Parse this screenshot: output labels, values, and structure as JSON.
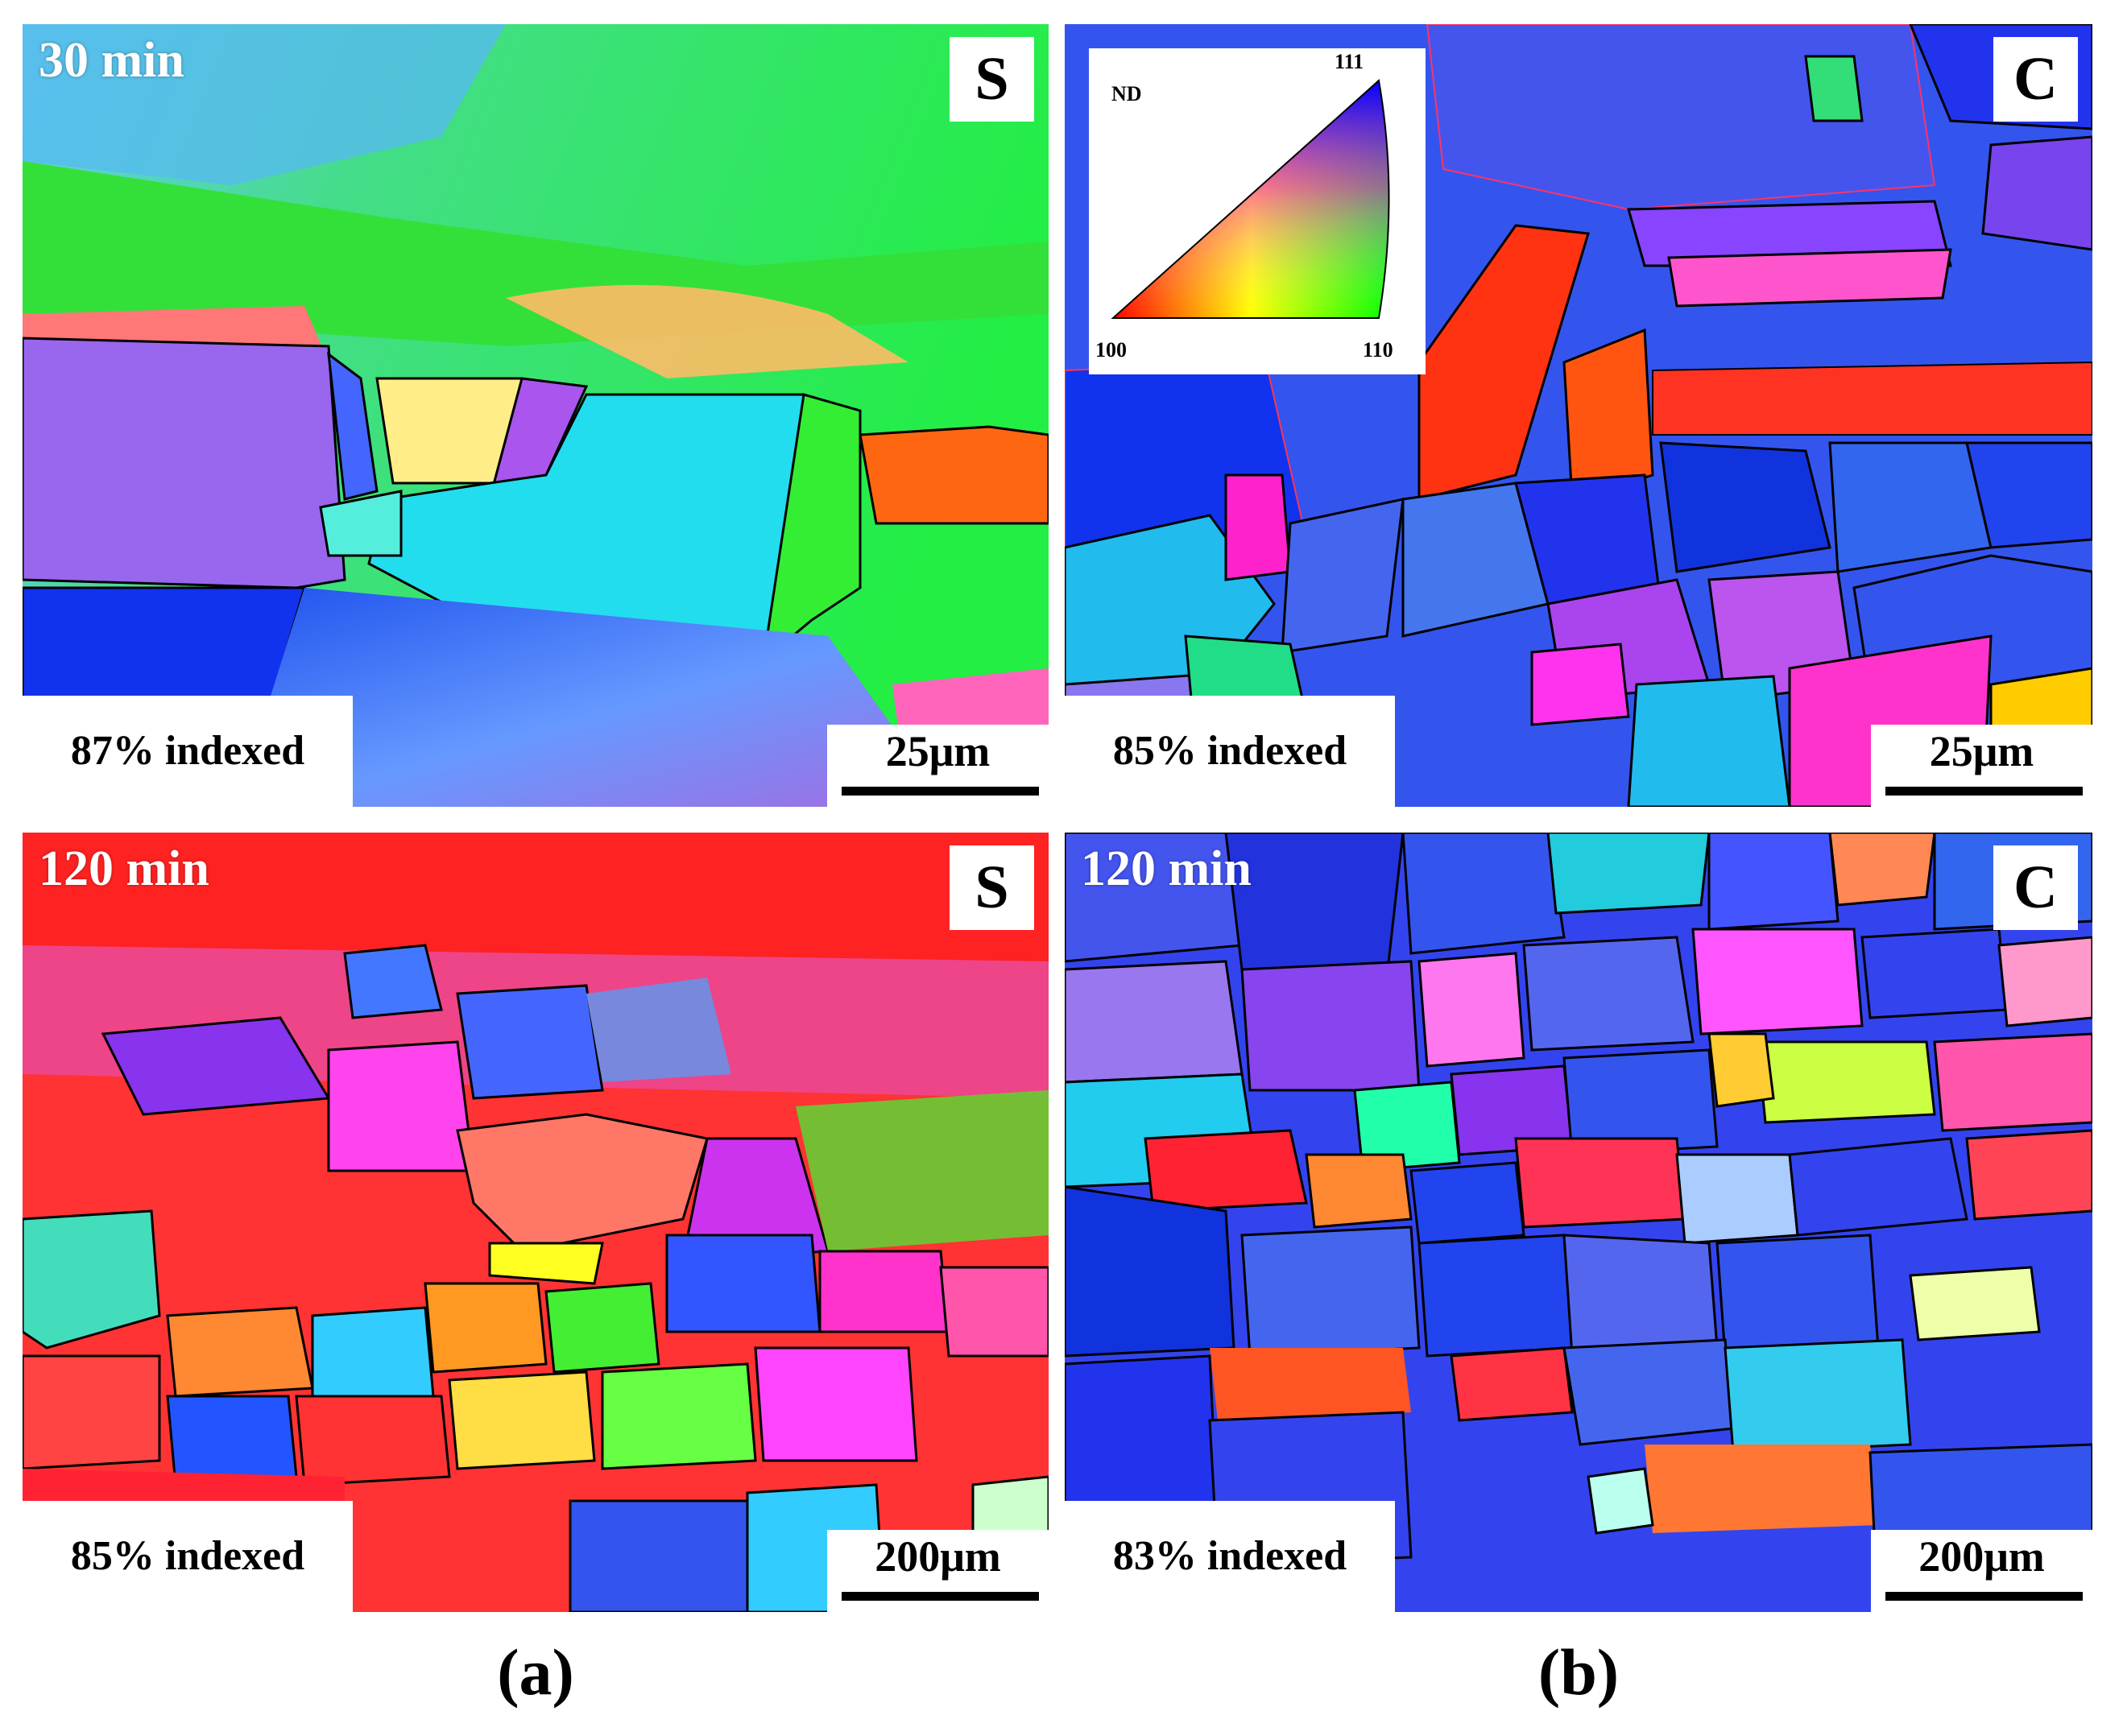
{
  "figure": {
    "sub_labels": [
      "(a)",
      "(b)"
    ],
    "legend": {
      "axis": "ND",
      "corners": [
        "111",
        "100",
        "110"
      ],
      "colors": {
        "100": "#ff0000",
        "110": "#00ff00",
        "111": "#0000ff"
      }
    },
    "panels": [
      {
        "id": "a-top",
        "time": "30 min",
        "letter": "S",
        "indexed": "87% indexed",
        "scale": "25μm"
      },
      {
        "id": "b-top",
        "time": "",
        "letter": "C",
        "indexed": "85% indexed",
        "scale": "25μm"
      },
      {
        "id": "a-bottom",
        "time": "120 min",
        "letter": "S",
        "indexed": "85% indexed",
        "scale": "200μm"
      },
      {
        "id": "b-bottom",
        "time": "120 min",
        "letter": "C",
        "indexed": "83% indexed",
        "scale": "200μm"
      }
    ]
  }
}
